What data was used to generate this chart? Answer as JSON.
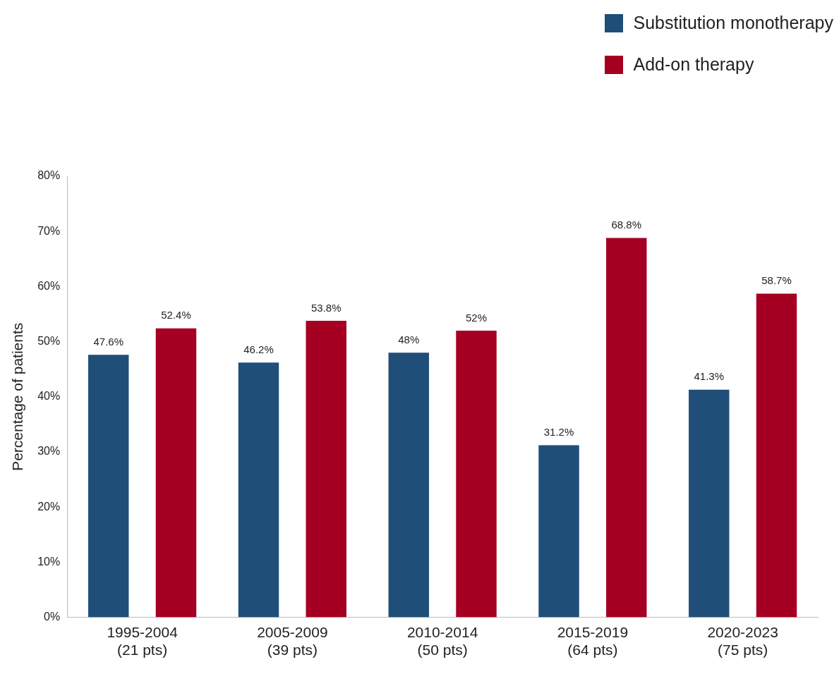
{
  "chart_data": {
    "type": "bar",
    "ylabel": "Percentage of patients",
    "categories": [
      "1995-2004\n(21 pts)",
      "2005-2009\n(39 pts)",
      "2010-2014\n(50 pts)",
      "2015-2019\n(64 pts)",
      "2020-2023\n(75 pts)"
    ],
    "series": [
      {
        "name": "Substitution monotherapy",
        "color": "#1f4e79",
        "values": [
          47.6,
          46.2,
          48,
          31.2,
          41.3
        ],
        "value_labels": [
          "47.6%",
          "46.2%",
          "48%",
          "31.2%",
          "41.3%"
        ]
      },
      {
        "name": "Add-on therapy",
        "color": "#a50021",
        "values": [
          52.4,
          53.8,
          52,
          68.8,
          58.7
        ],
        "value_labels": [
          "52.4%",
          "53.8%",
          "52%",
          "68.8%",
          "58.7%"
        ]
      }
    ],
    "ylim": [
      0,
      80
    ],
    "yticks": [
      {
        "value": 0,
        "label": "0%"
      },
      {
        "value": 10,
        "label": "10%"
      },
      {
        "value": 20,
        "label": "20%"
      },
      {
        "value": 30,
        "label": "30%"
      },
      {
        "value": 40,
        "label": "40%"
      },
      {
        "value": 50,
        "label": "50%"
      },
      {
        "value": 60,
        "label": "60%"
      },
      {
        "value": 70,
        "label": "70%"
      },
      {
        "value": 80,
        "label": "80%"
      }
    ],
    "grid": false,
    "legend": "top right"
  }
}
